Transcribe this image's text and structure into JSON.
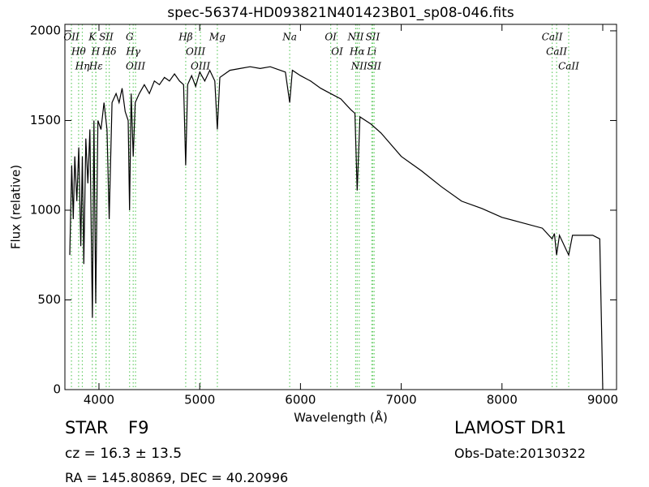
{
  "chart_data": {
    "type": "line",
    "title": "spec-56374-HD093821N401423B01_sp08-046.fits",
    "x_label": "Wavelength (Å)",
    "y_label": "Flux (relative)",
    "xlim": [
      3662,
      9137
    ],
    "ylim": [
      0,
      2036
    ],
    "xticks": [
      4000,
      5000,
      6000,
      7000,
      8000,
      9000
    ],
    "yticks": [
      0,
      500,
      1000,
      1500,
      2000
    ],
    "color": "#000000",
    "line_color": "#66cc66",
    "x": [
      3710,
      3720,
      3730,
      3745,
      3760,
      3780,
      3800,
      3820,
      3835,
      3850,
      3870,
      3890,
      3910,
      3935,
      3950,
      3968,
      3990,
      4020,
      4050,
      4080,
      4102,
      4130,
      4170,
      4200,
      4230,
      4260,
      4290,
      4304,
      4320,
      4340,
      4360,
      4400,
      4450,
      4500,
      4550,
      4600,
      4650,
      4700,
      4750,
      4800,
      4840,
      4861,
      4880,
      4920,
      4960,
      5000,
      5050,
      5100,
      5150,
      5175,
      5200,
      5300,
      5400,
      5500,
      5600,
      5700,
      5800,
      5850,
      5893,
      5920,
      6000,
      6100,
      6200,
      6300,
      6400,
      6500,
      6540,
      6563,
      6590,
      6700,
      6800,
      7000,
      7200,
      7400,
      7600,
      7800,
      8000,
      8200,
      8400,
      8498,
      8520,
      8542,
      8570,
      8662,
      8700,
      8900,
      8970,
      8990,
      9000
    ],
    "values": [
      750,
      1000,
      1250,
      950,
      1300,
      1050,
      1350,
      800,
      1300,
      700,
      1400,
      1150,
      1450,
      400,
      1500,
      480,
      1500,
      1450,
      1600,
      1450,
      950,
      1600,
      1650,
      1600,
      1680,
      1550,
      1500,
      1000,
      1650,
      1300,
      1600,
      1650,
      1700,
      1650,
      1720,
      1700,
      1740,
      1720,
      1760,
      1720,
      1700,
      1250,
      1700,
      1750,
      1690,
      1770,
      1720,
      1780,
      1720,
      1450,
      1740,
      1780,
      1790,
      1800,
      1790,
      1800,
      1780,
      1770,
      1600,
      1780,
      1750,
      1720,
      1680,
      1650,
      1620,
      1560,
      1540,
      1110,
      1520,
      1480,
      1430,
      1300,
      1220,
      1130,
      1050,
      1010,
      960,
      930,
      900,
      840,
      870,
      750,
      860,
      750,
      860,
      860,
      840,
      300,
      0
    ],
    "lines": [
      {
        "label": "OII",
        "wavelength": 3727
      },
      {
        "label": "Hθ",
        "wavelength": 3798
      },
      {
        "label": "Hη",
        "wavelength": 3835
      },
      {
        "label": "K",
        "wavelength": 3934
      },
      {
        "label": "H",
        "wavelength": 3968
      },
      {
        "label": "Hε",
        "wavelength": 3970
      },
      {
        "label": "SII",
        "wavelength": 4072
      },
      {
        "label": "Hδ",
        "wavelength": 4102
      },
      {
        "label": "G",
        "wavelength": 4304
      },
      {
        "label": "Hγ",
        "wavelength": 4340
      },
      {
        "label": "OIII",
        "wavelength": 4363
      },
      {
        "label": "Hβ",
        "wavelength": 4861
      },
      {
        "label": "OIII",
        "wavelength": 4959
      },
      {
        "label": "OIII",
        "wavelength": 5007
      },
      {
        "label": "Mg",
        "wavelength": 5175
      },
      {
        "label": "Na",
        "wavelength": 5893
      },
      {
        "label": "OI",
        "wavelength": 6300
      },
      {
        "label": "OI",
        "wavelength": 6364
      },
      {
        "label": "NII",
        "wavelength": 6548
      },
      {
        "label": "Hα",
        "wavelength": 6563
      },
      {
        "label": "NII",
        "wavelength": 6583
      },
      {
        "label": "Li",
        "wavelength": 6708
      },
      {
        "label": "SII",
        "wavelength": 6717
      },
      {
        "label": "SII",
        "wavelength": 6731
      },
      {
        "label": "CaII",
        "wavelength": 8498
      },
      {
        "label": "CaII",
        "wavelength": 8542
      },
      {
        "label": "CaII",
        "wavelength": 8662
      }
    ]
  },
  "info": {
    "class": "STAR",
    "subclass": "F9",
    "cz": "cz = 16.3 ± 13.5",
    "coords": "RA = 145.80869, DEC = 40.20996",
    "survey": "LAMOST DR1",
    "obs_date": "Obs-Date:20130322"
  }
}
